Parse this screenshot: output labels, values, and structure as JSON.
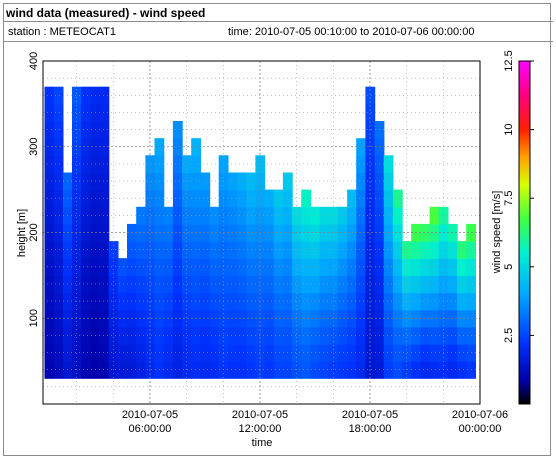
{
  "header": {
    "title": "wind data (measured) - wind speed",
    "station": "station : METEOCAT1",
    "time_range": "time: 2010-07-05 00:10:00 to 2010-07-06 00:00:00"
  },
  "chart_data": {
    "type": "heatmap",
    "title": "wind data (measured) - wind speed",
    "xlabel": "time",
    "ylabel": "height [m]",
    "colorbar_label": "wind speed [m/s]",
    "xlim": [
      "2010-07-05 00:10:00",
      "2010-07-06 00:00:00"
    ],
    "x_ticks": [
      {
        "line1": "2010-07-05",
        "line2": "06:00:00"
      },
      {
        "line1": "2010-07-05",
        "line2": "12:00:00"
      },
      {
        "line1": "2010-07-05",
        "line2": "18:00:00"
      },
      {
        "line1": "2010-07-06",
        "line2": "00:00:00"
      }
    ],
    "ylim": [
      0,
      400
    ],
    "y_ticks": [
      "100",
      "200",
      "300",
      "400"
    ],
    "zlim": [
      0,
      12.5
    ],
    "z_ticks": [
      "2.5",
      "5",
      "7.5",
      "10",
      "12.5"
    ],
    "grid": true,
    "heights": [
      40,
      60,
      80,
      100,
      120,
      140,
      160,
      180,
      200,
      220,
      240,
      260,
      280,
      300,
      320,
      340,
      360
    ],
    "time_hours": [
      0.5,
      1.0,
      1.5,
      2.0,
      2.5,
      3.0,
      3.5,
      4.0,
      4.5,
      5.0,
      5.5,
      6.0,
      6.5,
      7.0,
      7.5,
      8.0,
      8.5,
      9.0,
      9.5,
      10.0,
      10.5,
      11.0,
      11.5,
      12.0,
      12.5,
      13.0,
      13.5,
      14.0,
      14.5,
      15.0,
      15.5,
      16.0,
      16.5,
      17.0,
      17.5,
      18.0,
      18.5,
      19.0,
      19.5,
      20.0,
      20.5,
      21.0,
      21.5,
      22.0,
      22.5,
      23.0,
      23.5
    ],
    "max_height": [
      360,
      360,
      260,
      360,
      360,
      360,
      360,
      190,
      170,
      200,
      230,
      290,
      300,
      230,
      320,
      280,
      300,
      260,
      220,
      290,
      270,
      270,
      270,
      280,
      250,
      240,
      270,
      230,
      240,
      220,
      230,
      220,
      220,
      240,
      310,
      360,
      330,
      290,
      240,
      190,
      210,
      200,
      220,
      230,
      200,
      190,
      210
    ],
    "speed_low": [
      1.0,
      1.2,
      1.5,
      1.3,
      1.0,
      0.9,
      1.0,
      1.5,
      1.6,
      1.6,
      1.8,
      2.0,
      2.2,
      2.0,
      1.8,
      2.0,
      2.1,
      2.0,
      2.1,
      2.3,
      2.2,
      2.2,
      2.3,
      2.4,
      2.3,
      2.5,
      2.5,
      2.7,
      2.8,
      2.6,
      2.5,
      2.4,
      2.3,
      2.2,
      2.0,
      1.5,
      1.6,
      2.4,
      2.6,
      2.4,
      2.2,
      2.0,
      2.1,
      2.2,
      2.0,
      2.2,
      2.3
    ],
    "speed_high": [
      2.2,
      2.5,
      3.0,
      2.8,
      2.2,
      2.0,
      2.0,
      2.5,
      2.8,
      3.0,
      3.4,
      3.8,
      4.0,
      3.5,
      3.6,
      4.0,
      4.2,
      3.8,
      3.6,
      4.0,
      4.0,
      4.2,
      4.5,
      4.4,
      4.2,
      4.6,
      4.8,
      5.2,
      5.6,
      5.4,
      5.2,
      5.0,
      4.6,
      4.4,
      4.0,
      2.6,
      3.2,
      5.2,
      6.0,
      6.4,
      7.0,
      6.4,
      6.8,
      6.2,
      5.8,
      6.6,
      7.0
    ]
  }
}
